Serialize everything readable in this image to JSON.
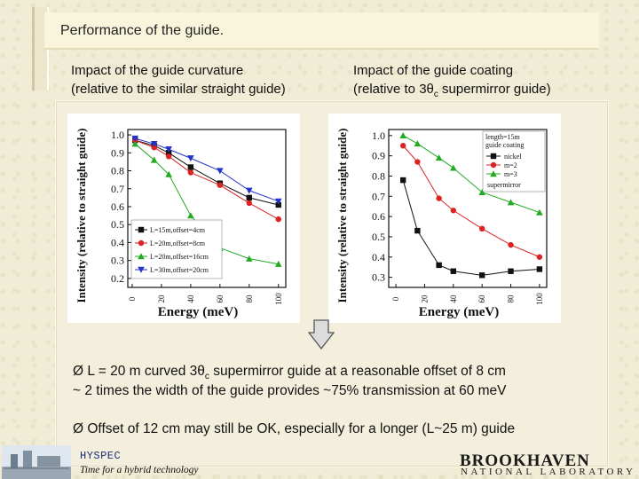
{
  "slide": {
    "title": "Performance of the guide.",
    "left_caption_1": "Impact of the guide curvature",
    "left_caption_2": "(relative to the similar straight guide)",
    "right_caption_1": "Impact of the guide coating",
    "right_caption_2_a": "(relative to 3θ",
    "right_caption_2_sub": "c",
    "right_caption_2_b": " supermirror guide)",
    "bullet1_a": "Ø L = 20 m curved 3θ",
    "bullet1_sub": "c",
    "bullet1_b": " supermirror guide at a reasonable offset of 8 cm",
    "bullet1_line2": "~ 2 times the width of the guide provides ~75% transmission at 60 meV",
    "bullet2": "Ø Offset of 12 cm may still be OK, especially for a longer (L~25 m) guide",
    "footer_name": "HYSPEC",
    "footer_tagline": "Time for a hybrid technology",
    "logo_line1": "BROOKHAVEN",
    "logo_line2": "NATIONAL LABORATORY"
  },
  "chart_data": [
    {
      "type": "line",
      "ylabel": "Intensity (relative to straight guide)",
      "xlabel": "Energy (meV)",
      "xticks": [
        0,
        20,
        40,
        60,
        80,
        100
      ],
      "yticks": [
        0.2,
        0.3,
        0.4,
        0.5,
        0.6,
        0.7,
        0.8,
        0.9,
        1.0
      ],
      "ytick_labels": [
        "0.2",
        "0.3",
        "0.4",
        "0.5",
        "0.6",
        "0.7",
        "0.8",
        "0.9",
        "1.0"
      ],
      "xlim": [
        -3,
        105
      ],
      "ylim": [
        0.15,
        1.03
      ],
      "legend_position": "bottom-left",
      "series": [
        {
          "name": "L=15m,offset=4cm",
          "color": "#111111",
          "marker": "square",
          "x": [
            2,
            15,
            25,
            40,
            60,
            80,
            100
          ],
          "y": [
            0.97,
            0.94,
            0.9,
            0.82,
            0.73,
            0.65,
            0.61
          ]
        },
        {
          "name": "L=20m,offset=8cm",
          "color": "#dd2222",
          "marker": "circle",
          "x": [
            2,
            15,
            25,
            40,
            60,
            80,
            100
          ],
          "y": [
            0.97,
            0.93,
            0.88,
            0.79,
            0.72,
            0.62,
            0.53
          ]
        },
        {
          "name": "L=20m,offset=16cm",
          "color": "#22aa22",
          "marker": "triangle",
          "x": [
            2,
            15,
            25,
            40,
            60,
            80,
            100
          ],
          "y": [
            0.95,
            0.86,
            0.78,
            0.55,
            0.37,
            0.31,
            0.28
          ]
        },
        {
          "name": "L=30m,offset=20cm",
          "color": "#2233cc",
          "marker": "triangle-down",
          "x": [
            2,
            15,
            25,
            40,
            60,
            80,
            100
          ],
          "y": [
            0.98,
            0.95,
            0.92,
            0.87,
            0.8,
            0.69,
            0.63
          ]
        }
      ]
    },
    {
      "type": "line",
      "ylabel": "Intensity (relative to straight guide)",
      "xlabel": "Energy (meV)",
      "xticks": [
        0,
        20,
        40,
        60,
        80,
        100
      ],
      "yticks": [
        0.3,
        0.4,
        0.5,
        0.6,
        0.7,
        0.8,
        0.9,
        1.0
      ],
      "ytick_labels": [
        "0.3",
        "0.4",
        "0.5",
        "0.6",
        "0.7",
        "0.8",
        "0.9",
        "1.0"
      ],
      "xlim": [
        -5,
        105
      ],
      "ylim": [
        0.25,
        1.03
      ],
      "legend_title_1": "length=15m",
      "legend_title_2": "guide coating",
      "legend_footer": "supermirror",
      "legend_position": "top-right",
      "series": [
        {
          "name": "nickel",
          "color": "#111111",
          "marker": "square",
          "x": [
            5,
            15,
            30,
            40,
            60,
            80,
            100
          ],
          "y": [
            0.78,
            0.53,
            0.36,
            0.33,
            0.31,
            0.33,
            0.34
          ]
        },
        {
          "name": "m=2",
          "color": "#dd2222",
          "marker": "circle",
          "x": [
            5,
            15,
            30,
            40,
            60,
            80,
            100
          ],
          "y": [
            0.95,
            0.87,
            0.69,
            0.63,
            0.54,
            0.46,
            0.4
          ]
        },
        {
          "name": "m=3",
          "color": "#22aa22",
          "marker": "triangle",
          "x": [
            5,
            15,
            30,
            40,
            60,
            80,
            100
          ],
          "y": [
            1.0,
            0.96,
            0.89,
            0.84,
            0.72,
            0.67,
            0.62
          ]
        }
      ]
    }
  ]
}
